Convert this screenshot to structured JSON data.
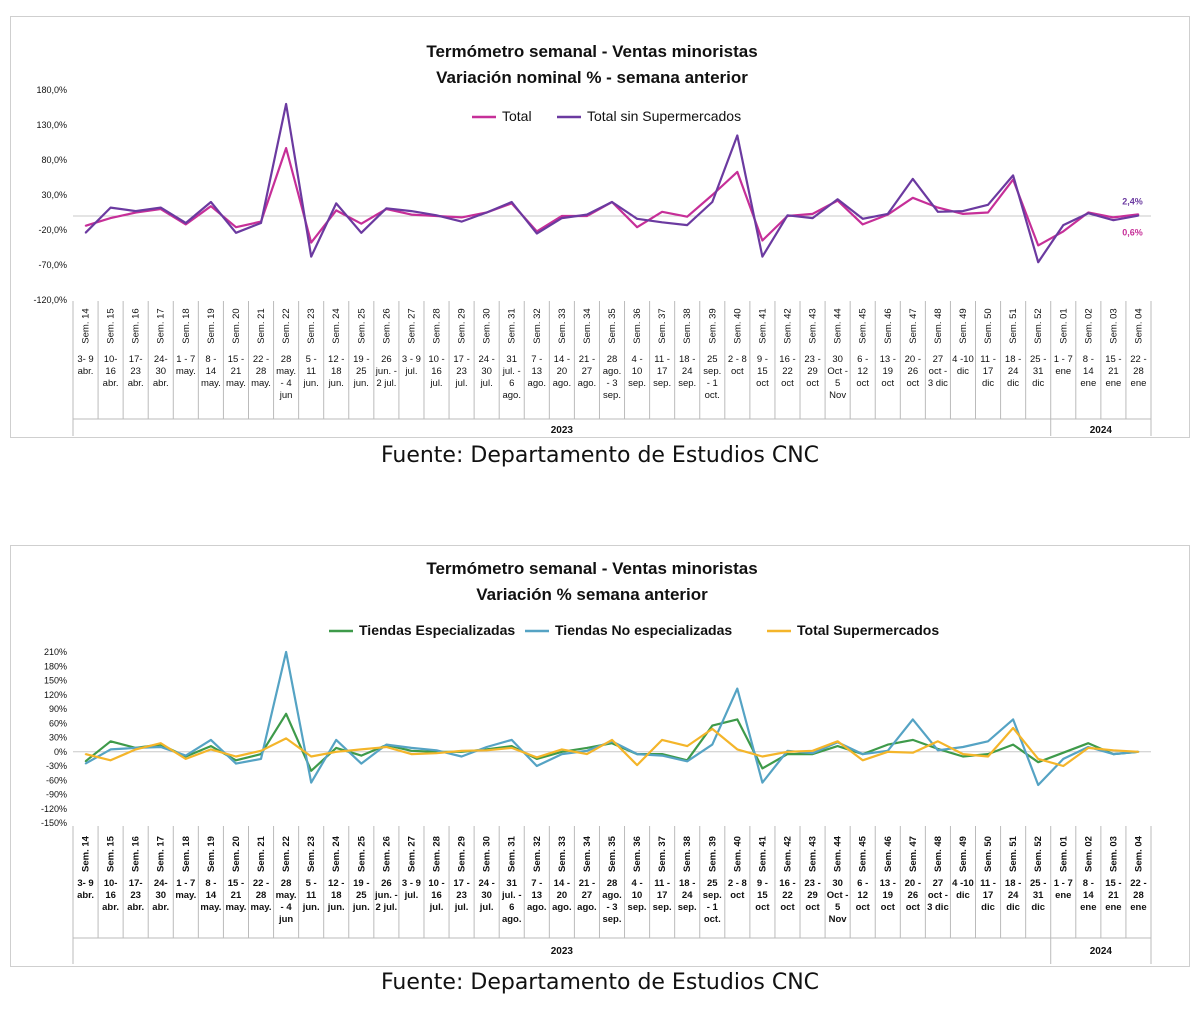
{
  "charts": [
    {
      "title_line1": "Termómetro semanal - Ventas minoristas",
      "title_line2": "Variación nominal % - semana anterior",
      "source": "Fuente: Departamento de Estudios CNC"
    },
    {
      "title_line1": "Termómetro semanal - Ventas minoristas",
      "title_line2": "Variación % semana anterior",
      "source": "Fuente: Departamento de Estudios CNC"
    }
  ],
  "chart_data": [
    {
      "type": "line",
      "title": "Termómetro semanal - Ventas minoristas\nVariación nominal % - semana anterior",
      "ylim": [
        -120,
        180
      ],
      "yticks": [
        -120,
        -70,
        -20,
        30,
        80,
        130,
        180
      ],
      "ytick_labels": [
        "-120,0%",
        "-70,0%",
        "-20,0%",
        "30,0%",
        "80,0%",
        "130,0%",
        "180,0%"
      ],
      "grid": false,
      "legend": "top",
      "legend_bold": false,
      "week_labels": [
        "Sem. 14",
        "Sem. 15",
        "Sem. 16",
        "Sem. 17",
        "Sem. 18",
        "Sem. 19",
        "Sem. 20",
        "Sem. 21",
        "Sem. 22",
        "Sem. 23",
        "Sem. 24",
        "Sem. 25",
        "Sem. 26",
        "Sem. 27",
        "Sem. 28",
        "Sem. 29",
        "Sem. 30",
        "Sem. 31",
        "Sem. 32",
        "Sem. 33",
        "Sem. 34",
        "Sem. 35",
        "Sem. 36",
        "Sem. 37",
        "Sem. 38",
        "Sem. 39",
        "Sem. 40",
        "Sem. 41",
        "Sem. 42",
        "Sem. 43",
        "Sem. 44",
        "Sem. 45",
        "Sem. 46",
        "Sem. 47",
        "Sem. 48",
        "Sem. 49",
        "Sem. 50",
        "Sem. 51",
        "Sem. 52",
        "Sem. 01",
        "Sem. 02",
        "Sem. 03",
        "Sem. 04"
      ],
      "date_labels": [
        [
          "3- 9",
          "abr."
        ],
        [
          "10-",
          "16",
          "abr."
        ],
        [
          "17-",
          "23",
          "abr."
        ],
        [
          "24-",
          "30",
          "abr."
        ],
        [
          "1 - 7",
          "may."
        ],
        [
          "8 -",
          "14",
          "may."
        ],
        [
          "15 -",
          "21",
          "may."
        ],
        [
          "22 -",
          "28",
          "may."
        ],
        [
          "28",
          "may.",
          "- 4",
          "jun"
        ],
        [
          "5 -",
          "11",
          "jun."
        ],
        [
          "12 -",
          "18",
          "jun."
        ],
        [
          "19 -",
          "25",
          "jun."
        ],
        [
          "26",
          "jun. -",
          "2 jul."
        ],
        [
          "3 - 9",
          "jul."
        ],
        [
          "10 -",
          "16",
          "jul."
        ],
        [
          "17 -",
          "23",
          "jul."
        ],
        [
          "24 -",
          "30",
          "jul."
        ],
        [
          "31",
          "jul. -",
          "6",
          "ago."
        ],
        [
          "7 -",
          "13",
          "ago."
        ],
        [
          "14 -",
          "20",
          "ago."
        ],
        [
          "21 -",
          "27",
          "ago."
        ],
        [
          "28",
          "ago.",
          "- 3",
          "sep."
        ],
        [
          "4 -",
          "10",
          "sep."
        ],
        [
          "11 -",
          "17",
          "sep."
        ],
        [
          "18 -",
          "24",
          "sep."
        ],
        [
          "25",
          "sep.",
          "- 1",
          "oct."
        ],
        [
          "2 - 8",
          "oct"
        ],
        [
          "9 -",
          "15",
          "oct"
        ],
        [
          "16 -",
          "22",
          "oct"
        ],
        [
          "23 -",
          "29",
          "oct"
        ],
        [
          "30",
          "Oct -",
          "5",
          "Nov"
        ],
        [
          "6 -",
          "12",
          "oct"
        ],
        [
          "13 -",
          "19",
          "oct"
        ],
        [
          "20 -",
          "26",
          "oct"
        ],
        [
          "27",
          "oct -",
          "3 dic"
        ],
        [
          "4 -10",
          "dic"
        ],
        [
          "11 -",
          "17",
          "dic"
        ],
        [
          "18 -",
          "24",
          "dic"
        ],
        [
          "25 -",
          "31",
          "dic"
        ],
        [
          "1 - 7",
          "ene"
        ],
        [
          "8 -",
          "14",
          "ene"
        ],
        [
          "15 -",
          "21",
          "ene"
        ],
        [
          "22 -",
          "28",
          "ene"
        ]
      ],
      "years": [
        {
          "label": "2023",
          "from": 0,
          "to": 38
        },
        {
          "label": "2024",
          "from": 39,
          "to": 42
        }
      ],
      "series": [
        {
          "name": "Total",
          "color": "#c62f98",
          "values": [
            -14,
            -3,
            5,
            10,
            -12,
            14,
            -16,
            -8,
            97,
            -38,
            8,
            -11,
            10,
            2,
            0,
            -2,
            5,
            18,
            -22,
            0,
            0,
            20,
            -16,
            6,
            -1,
            30,
            63,
            -35,
            0,
            3,
            22,
            -12,
            2,
            26,
            12,
            3,
            5,
            52,
            -42,
            -22,
            5,
            -2,
            2.4
          ]
        },
        {
          "name": "Total sin Supermercados",
          "color": "#6b3aa0",
          "values": [
            -24,
            12,
            7,
            12,
            -10,
            20,
            -24,
            -10,
            160,
            -58,
            18,
            -24,
            11,
            7,
            1,
            -8,
            5,
            20,
            -25,
            -3,
            2,
            20,
            -4,
            -9,
            -13,
            20,
            115,
            -58,
            1,
            -3,
            24,
            -4,
            3,
            53,
            6,
            7,
            16,
            58,
            -66,
            -13,
            4,
            -6,
            0.6
          ]
        }
      ],
      "annotations": [
        "2,4%",
        "0,6%"
      ]
    },
    {
      "type": "line",
      "title": "Termómetro semanal - Ventas minoristas\nVariación % semana anterior",
      "ylim": [
        -150,
        210
      ],
      "yticks": [
        -150,
        -120,
        -90,
        -60,
        -30,
        0,
        30,
        60,
        90,
        120,
        150,
        180,
        210
      ],
      "ytick_labels": [
        "-150%",
        "-120%",
        "-90%",
        "-60%",
        "-30%",
        "0%",
        "30%",
        "60%",
        "90%",
        "120%",
        "150%",
        "180%",
        "210%"
      ],
      "grid": false,
      "legend": "top",
      "legend_bold": true,
      "week_labels": [
        "Sem. 14",
        "Sem. 15",
        "Sem. 16",
        "Sem. 17",
        "Sem. 18",
        "Sem. 19",
        "Sem. 20",
        "Sem. 21",
        "Sem. 22",
        "Sem. 23",
        "Sem. 24",
        "Sem. 25",
        "Sem. 26",
        "Sem. 27",
        "Sem. 28",
        "Sem. 29",
        "Sem. 30",
        "Sem. 31",
        "Sem. 32",
        "Sem. 33",
        "Sem. 34",
        "Sem. 35",
        "Sem. 36",
        "Sem. 37",
        "Sem. 38",
        "Sem. 39",
        "Sem. 40",
        "Sem. 41",
        "Sem. 42",
        "Sem. 43",
        "Sem. 44",
        "Sem. 45",
        "Sem. 46",
        "Sem. 47",
        "Sem. 48",
        "Sem. 49",
        "Sem. 50",
        "Sem. 51",
        "Sem. 52",
        "Sem. 01",
        "Sem. 02",
        "Sem. 03",
        "Sem. 04"
      ],
      "date_labels": [
        [
          "3- 9",
          "abr."
        ],
        [
          "10-",
          "16",
          "abr."
        ],
        [
          "17-",
          "23",
          "abr."
        ],
        [
          "24-",
          "30",
          "abr."
        ],
        [
          "1 - 7",
          "may."
        ],
        [
          "8 -",
          "14",
          "may."
        ],
        [
          "15 -",
          "21",
          "may."
        ],
        [
          "22 -",
          "28",
          "may."
        ],
        [
          "28",
          "may.",
          "- 4",
          "jun"
        ],
        [
          "5 -",
          "11",
          "jun."
        ],
        [
          "12 -",
          "18",
          "jun."
        ],
        [
          "19 -",
          "25",
          "jun."
        ],
        [
          "26",
          "jun. -",
          "2 jul."
        ],
        [
          "3 - 9",
          "jul."
        ],
        [
          "10 -",
          "16",
          "jul."
        ],
        [
          "17 -",
          "23",
          "jul."
        ],
        [
          "24 -",
          "30",
          "jul."
        ],
        [
          "31",
          "jul. -",
          "6",
          "ago."
        ],
        [
          "7 -",
          "13",
          "ago."
        ],
        [
          "14 -",
          "20",
          "ago."
        ],
        [
          "21 -",
          "27",
          "ago."
        ],
        [
          "28",
          "ago.",
          "- 3",
          "sep."
        ],
        [
          "4 -",
          "10",
          "sep."
        ],
        [
          "11 -",
          "17",
          "sep."
        ],
        [
          "18 -",
          "24",
          "sep."
        ],
        [
          "25",
          "sep.",
          "- 1",
          "oct."
        ],
        [
          "2 - 8",
          "oct"
        ],
        [
          "9 -",
          "15",
          "oct"
        ],
        [
          "16 -",
          "22",
          "oct"
        ],
        [
          "23 -",
          "29",
          "oct"
        ],
        [
          "30",
          "Oct -",
          "5",
          "Nov"
        ],
        [
          "6 -",
          "12",
          "oct"
        ],
        [
          "13 -",
          "19",
          "oct"
        ],
        [
          "20 -",
          "26",
          "oct"
        ],
        [
          "27",
          "oct -",
          "3 dic"
        ],
        [
          "4 -10",
          "dic"
        ],
        [
          "11 -",
          "17",
          "dic"
        ],
        [
          "18 -",
          "24",
          "dic"
        ],
        [
          "25 -",
          "31",
          "dic"
        ],
        [
          "1 - 7",
          "ene"
        ],
        [
          "8 -",
          "14",
          "ene"
        ],
        [
          "15 -",
          "21",
          "ene"
        ],
        [
          "22 -",
          "28",
          "ene"
        ]
      ],
      "years": [
        {
          "label": "2023",
          "from": 0,
          "to": 38
        },
        {
          "label": "2024",
          "from": 39,
          "to": 42
        }
      ],
      "series": [
        {
          "name": "Tiendas Especializadas",
          "color": "#3e9a4a",
          "values": [
            -20,
            22,
            8,
            15,
            -10,
            12,
            -18,
            -5,
            80,
            -40,
            8,
            -8,
            14,
            2,
            0,
            0,
            5,
            12,
            -15,
            0,
            8,
            18,
            -5,
            -5,
            -18,
            55,
            68,
            -35,
            -5,
            -5,
            12,
            -5,
            15,
            25,
            6,
            -10,
            -5,
            15,
            -22,
            -2,
            18,
            -5,
            0
          ]
        },
        {
          "name": "Tiendas No especializadas",
          "color": "#55a3c4",
          "values": [
            -25,
            5,
            8,
            10,
            -8,
            25,
            -25,
            -15,
            210,
            -65,
            25,
            -25,
            15,
            8,
            3,
            -10,
            10,
            25,
            -30,
            -5,
            2,
            22,
            -5,
            -8,
            -20,
            15,
            133,
            -65,
            2,
            -3,
            20,
            -5,
            2,
            68,
            3,
            10,
            22,
            68,
            -70,
            -15,
            10,
            -5,
            0
          ]
        },
        {
          "name": "Total Supermercados",
          "color": "#f4b52a",
          "values": [
            -5,
            -18,
            5,
            18,
            -15,
            5,
            -10,
            2,
            28,
            -10,
            0,
            5,
            10,
            -5,
            -3,
            2,
            3,
            8,
            -12,
            5,
            -5,
            25,
            -28,
            25,
            12,
            48,
            5,
            -10,
            0,
            2,
            22,
            -18,
            0,
            -2,
            22,
            -5,
            -10,
            50,
            -15,
            -30,
            8,
            3,
            0
          ]
        }
      ]
    }
  ]
}
